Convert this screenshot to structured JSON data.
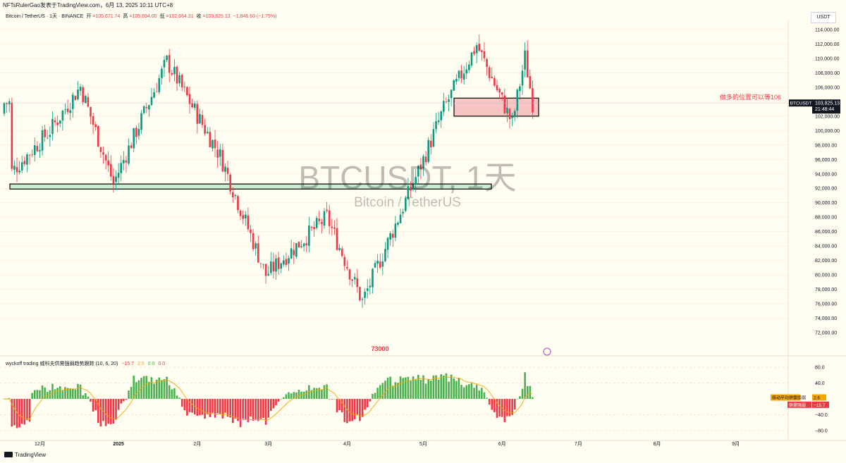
{
  "header": {
    "published_line": "NFTsRulerGao发表于TradingView.com，6月 13, 2025 10:11 UTC+8",
    "symbol_line": "Bitcoin / TetherUS · 1天 · BINANCE",
    "open_label": "开",
    "open_value": "=105,671.74",
    "high_label": "高",
    "high_value": "=105,694.00",
    "low_label": "低",
    "low_value": "=102,664.31",
    "close_label": "收",
    "close_value": "=103,825.13",
    "change_value": "−1,846.60 (−1.75%)",
    "currency_button": "USDT"
  },
  "watermark": {
    "symbol": "BTCUSDT, 1天",
    "name": "Bitcoin / TetherUS"
  },
  "annotations": {
    "entry_note": "做多的位置可以等106",
    "low_label": "73000"
  },
  "price_tag": {
    "symbol": "BTCUSDT",
    "price": "103,825.13",
    "countdown": "21:48:44"
  },
  "indicator": {
    "title": "wyckoff trading 威科夫供需强弱趋势跟踪 (10, 6, 20)",
    "v1": "−15.7",
    "v2": "2.6",
    "v3": "0.0",
    "v4": "0.0",
    "tag_ma_label": "移动平均供需强弱",
    "tag_ma_value": "2.6",
    "tag_sd_label": "供需强弱",
    "tag_sd_value": "−15.7"
  },
  "footer": {
    "brand": "TradingView"
  },
  "colors": {
    "up": "#089981",
    "down": "#f23645",
    "bg": "#fffef0",
    "hist_up": "#4caf50",
    "hist_down": "#f23645",
    "ma": "#f7a600"
  },
  "chart_data": [
    {
      "type": "candlestick",
      "ylim": [
        72000,
        114000
      ],
      "y_ticks": [
        "114,000.00",
        "112,000.00",
        "110,000.00",
        "108,000.00",
        "106,000.00",
        "104,000.00",
        "102,000.00",
        "100,000.00",
        "98,000.00",
        "96,000.00",
        "94,000.00",
        "92,000.00",
        "90,000.00",
        "88,000.00",
        "86,000.00",
        "84,000.00",
        "82,000.00",
        "80,000.00",
        "78,000.00",
        "76,000.00",
        "74,000.00",
        "72,000.00"
      ],
      "x_ticks": [
        "12月",
        "2025",
        "2月",
        "3月",
        "4月",
        "5月",
        "6月",
        "7月",
        "8月",
        "9月"
      ],
      "key_points": [
        {
          "date": "2024-11-20",
          "price": 94300
        },
        {
          "date": "2024-12-05",
          "price": 100000
        },
        {
          "date": "2024-12-17",
          "price": 106100
        },
        {
          "date": "2024-12-30",
          "price": 92700
        },
        {
          "date": "2025-01-20",
          "price": 109600
        },
        {
          "date": "2025-02-10",
          "price": 96500
        },
        {
          "date": "2025-02-28",
          "price": 80000
        },
        {
          "date": "2025-03-24",
          "price": 88000
        },
        {
          "date": "2025-04-07",
          "price": 76300
        },
        {
          "date": "2025-05-01",
          "price": 96000
        },
        {
          "date": "2025-05-09",
          "price": 103000
        },
        {
          "date": "2025-05-22",
          "price": 111900
        },
        {
          "date": "2025-06-05",
          "price": 101000
        },
        {
          "date": "2025-06-10",
          "price": 110200
        },
        {
          "date": "2025-06-13",
          "price": 103825.13
        }
      ],
      "zones": [
        {
          "name": "support",
          "low": 91900,
          "high": 92600,
          "color": "#c8ecd0"
        },
        {
          "name": "resistance-box",
          "low": 102000,
          "high": 104500,
          "color": "#f9c4c4"
        }
      ],
      "last_price": 103825.13
    },
    {
      "type": "histogram",
      "ylim": [
        -80,
        80
      ],
      "y_ticks": [
        "80.0",
        "40.0",
        "−40.0",
        "−80.0"
      ],
      "last_value": -15.7,
      "ma_value": 2.6
    }
  ]
}
